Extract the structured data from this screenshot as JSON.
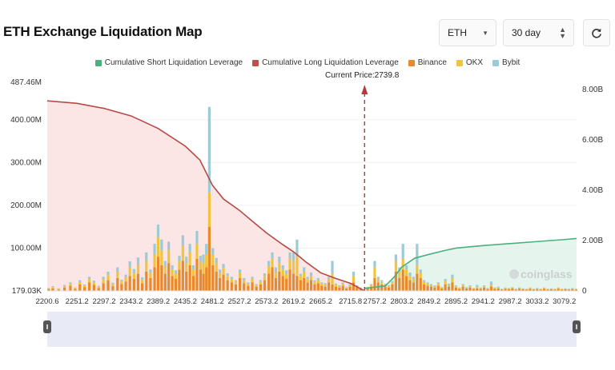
{
  "title": "ETH Exchange Liquidation Map",
  "controls": {
    "coin": "ETH",
    "period": "30 day"
  },
  "current_price_label": "Current Price:2739.8",
  "watermark": "coinglass",
  "chart_data": {
    "type": "bar",
    "current_price": 2739.8,
    "x_ticks": [
      "2200.6",
      "2251.2",
      "2297.2",
      "2343.2",
      "2389.2",
      "2435.2",
      "2481.2",
      "2527.2",
      "2573.2",
      "2619.2",
      "2665.2",
      "2715.8",
      "2757.2",
      "2803.2",
      "2849.2",
      "2895.2",
      "2941.2",
      "2987.2",
      "3033.2",
      "3079.2"
    ],
    "y_left_ticks": [
      "487.46M",
      "400.00M",
      "300.00M",
      "200.00M",
      "100.00M",
      "179.03K"
    ],
    "y_right_ticks": [
      "8.00B",
      "6.00B",
      "4.00B",
      "2.00B",
      "0"
    ],
    "ylim_left": [
      0,
      487.46
    ],
    "ylim_right": [
      0,
      8.0
    ],
    "legend": [
      {
        "name": "Cumulative Short Liquidation Leverage",
        "color": "#4caf7d"
      },
      {
        "name": "Cumulative Long Liquidation Leverage",
        "color": "#c0504d"
      },
      {
        "name": "Binance",
        "color": "#e8892c"
      },
      {
        "name": "OKX",
        "color": "#f2c43d"
      },
      {
        "name": "Bybit",
        "color": "#9ccad6"
      }
    ],
    "long_cumulative": {
      "x": [
        2200.6,
        2251.2,
        2297.2,
        2343.2,
        2389.2,
        2435.2,
        2460,
        2481.2,
        2500,
        2527.2,
        2550,
        2573.2,
        2600,
        2619.2,
        2640,
        2665.2,
        2690,
        2715.8,
        2739.8
      ],
      "y": [
        7.55,
        7.45,
        7.25,
        6.95,
        6.45,
        5.75,
        5.2,
        4.2,
        3.65,
        3.2,
        2.75,
        2.3,
        1.85,
        1.55,
        1.15,
        0.72,
        0.5,
        0.3,
        0.0
      ]
    },
    "short_cumulative": {
      "x": [
        2739.8,
        2757.2,
        2775,
        2790,
        2803.2,
        2825,
        2849.2,
        2875,
        2895.2,
        2941.2,
        2987.2,
        3033.2,
        3079.2,
        3100
      ],
      "y": [
        0.1,
        0.15,
        0.2,
        0.55,
        0.95,
        1.3,
        1.45,
        1.6,
        1.7,
        1.8,
        1.88,
        1.96,
        2.04,
        2.08
      ]
    },
    "bars": [
      {
        "x": 2203,
        "b": 4,
        "o": 2,
        "y": 1
      },
      {
        "x": 2210,
        "b": 6,
        "o": 3,
        "y": 2
      },
      {
        "x": 2220,
        "b": 3,
        "o": 2,
        "y": 1
      },
      {
        "x": 2230,
        "b": 8,
        "o": 4,
        "y": 2
      },
      {
        "x": 2240,
        "b": 12,
        "o": 5,
        "y": 3
      },
      {
        "x": 2248,
        "b": 5,
        "o": 2,
        "y": 1
      },
      {
        "x": 2256,
        "b": 15,
        "o": 6,
        "y": 4
      },
      {
        "x": 2264,
        "b": 9,
        "o": 4,
        "y": 2
      },
      {
        "x": 2272,
        "b": 20,
        "o": 8,
        "y": 5
      },
      {
        "x": 2280,
        "b": 14,
        "o": 6,
        "y": 4
      },
      {
        "x": 2288,
        "b": 7,
        "o": 3,
        "y": 2
      },
      {
        "x": 2296,
        "b": 18,
        "o": 9,
        "y": 6
      },
      {
        "x": 2304,
        "b": 25,
        "o": 12,
        "y": 8
      },
      {
        "x": 2312,
        "b": 11,
        "o": 5,
        "y": 3
      },
      {
        "x": 2320,
        "b": 30,
        "o": 15,
        "y": 10
      },
      {
        "x": 2327,
        "b": 16,
        "o": 6,
        "y": 4
      },
      {
        "x": 2334,
        "b": 22,
        "o": 10,
        "y": 6
      },
      {
        "x": 2341,
        "b": 35,
        "o": 20,
        "y": 14
      },
      {
        "x": 2348,
        "b": 28,
        "o": 14,
        "y": 9
      },
      {
        "x": 2355,
        "b": 40,
        "o": 22,
        "y": 16
      },
      {
        "x": 2362,
        "b": 18,
        "o": 8,
        "y": 6
      },
      {
        "x": 2369,
        "b": 45,
        "o": 25,
        "y": 20
      },
      {
        "x": 2376,
        "b": 30,
        "o": 12,
        "y": 8
      },
      {
        "x": 2383,
        "b": 55,
        "o": 30,
        "y": 25
      },
      {
        "x": 2389,
        "b": 80,
        "o": 45,
        "y": 30
      },
      {
        "x": 2395,
        "b": 60,
        "o": 35,
        "y": 25
      },
      {
        "x": 2401,
        "b": 40,
        "o": 18,
        "y": 12
      },
      {
        "x": 2407,
        "b": 65,
        "o": 30,
        "y": 20
      },
      {
        "x": 2413,
        "b": 35,
        "o": 15,
        "y": 10
      },
      {
        "x": 2419,
        "b": 28,
        "o": 12,
        "y": 8
      },
      {
        "x": 2425,
        "b": 50,
        "o": 20,
        "y": 12
      },
      {
        "x": 2431,
        "b": 70,
        "o": 35,
        "y": 25
      },
      {
        "x": 2437,
        "b": 45,
        "o": 20,
        "y": 15
      },
      {
        "x": 2443,
        "b": 60,
        "o": 30,
        "y": 20
      },
      {
        "x": 2449,
        "b": 35,
        "o": 15,
        "y": 10
      },
      {
        "x": 2455,
        "b": 75,
        "o": 35,
        "y": 30
      },
      {
        "x": 2461,
        "b": 50,
        "o": 20,
        "y": 12
      },
      {
        "x": 2466,
        "b": 40,
        "o": 25,
        "y": 20
      },
      {
        "x": 2471,
        "b": 55,
        "o": 30,
        "y": 25
      },
      {
        "x": 2476,
        "b": 150,
        "o": 80,
        "y": 200
      },
      {
        "x": 2482,
        "b": 60,
        "o": 25,
        "y": 15
      },
      {
        "x": 2488,
        "b": 45,
        "o": 20,
        "y": 12
      },
      {
        "x": 2494,
        "b": 30,
        "o": 12,
        "y": 8
      },
      {
        "x": 2500,
        "b": 38,
        "o": 15,
        "y": 10
      },
      {
        "x": 2507,
        "b": 25,
        "o": 10,
        "y": 6
      },
      {
        "x": 2514,
        "b": 20,
        "o": 8,
        "y": 5
      },
      {
        "x": 2521,
        "b": 15,
        "o": 6,
        "y": 4
      },
      {
        "x": 2528,
        "b": 30,
        "o": 12,
        "y": 8
      },
      {
        "x": 2535,
        "b": 18,
        "o": 7,
        "y": 5
      },
      {
        "x": 2542,
        "b": 12,
        "o": 5,
        "y": 3
      },
      {
        "x": 2549,
        "b": 20,
        "o": 8,
        "y": 5
      },
      {
        "x": 2556,
        "b": 10,
        "o": 4,
        "y": 2
      },
      {
        "x": 2563,
        "b": 15,
        "o": 6,
        "y": 4
      },
      {
        "x": 2570,
        "b": 25,
        "o": 10,
        "y": 6
      },
      {
        "x": 2577,
        "b": 40,
        "o": 18,
        "y": 12
      },
      {
        "x": 2583,
        "b": 55,
        "o": 20,
        "y": 15
      },
      {
        "x": 2589,
        "b": 30,
        "o": 15,
        "y": 10
      },
      {
        "x": 2595,
        "b": 45,
        "o": 20,
        "y": 15
      },
      {
        "x": 2601,
        "b": 35,
        "o": 15,
        "y": 10
      },
      {
        "x": 2607,
        "b": 28,
        "o": 12,
        "y": 8
      },
      {
        "x": 2613,
        "b": 50,
        "o": 25,
        "y": 15
      },
      {
        "x": 2619,
        "b": 40,
        "o": 30,
        "y": 20
      },
      {
        "x": 2625,
        "b": 35,
        "o": 45,
        "y": 40
      },
      {
        "x": 2631,
        "b": 25,
        "o": 10,
        "y": 5
      },
      {
        "x": 2637,
        "b": 30,
        "o": 15,
        "y": 10
      },
      {
        "x": 2643,
        "b": 20,
        "o": 8,
        "y": 5
      },
      {
        "x": 2649,
        "b": 25,
        "o": 10,
        "y": 8
      },
      {
        "x": 2655,
        "b": 15,
        "o": 6,
        "y": 4
      },
      {
        "x": 2661,
        "b": 18,
        "o": 7,
        "y": 5
      },
      {
        "x": 2667,
        "b": 12,
        "o": 5,
        "y": 3
      },
      {
        "x": 2673,
        "b": 10,
        "o": 5,
        "y": 3
      },
      {
        "x": 2679,
        "b": 20,
        "o": 8,
        "y": 5
      },
      {
        "x": 2685,
        "b": 15,
        "o": 25,
        "y": 30
      },
      {
        "x": 2691,
        "b": 10,
        "o": 4,
        "y": 3
      },
      {
        "x": 2697,
        "b": 8,
        "o": 3,
        "y": 2
      },
      {
        "x": 2703,
        "b": 12,
        "o": 5,
        "y": 3
      },
      {
        "x": 2709,
        "b": 6,
        "o": 2,
        "y": 1
      },
      {
        "x": 2715,
        "b": 10,
        "o": 4,
        "y": 2
      },
      {
        "x": 2721,
        "b": 20,
        "o": 15,
        "y": 10
      },
      {
        "x": 2727,
        "b": 8,
        "o": 3,
        "y": 2
      },
      {
        "x": 2733,
        "b": 5,
        "o": 2,
        "y": 1
      },
      {
        "x": 2745,
        "b": 6,
        "o": 2,
        "y": 1
      },
      {
        "x": 2751,
        "b": 10,
        "o": 4,
        "y": 2
      },
      {
        "x": 2757,
        "b": 30,
        "o": 25,
        "y": 15
      },
      {
        "x": 2763,
        "b": 20,
        "o": 8,
        "y": 5
      },
      {
        "x": 2769,
        "b": 15,
        "o": 6,
        "y": 4
      },
      {
        "x": 2775,
        "b": 10,
        "o": 4,
        "y": 3
      },
      {
        "x": 2781,
        "b": 8,
        "o": 3,
        "y": 2
      },
      {
        "x": 2787,
        "b": 15,
        "o": 5,
        "y": 3
      },
      {
        "x": 2793,
        "b": 45,
        "o": 25,
        "y": 15
      },
      {
        "x": 2799,
        "b": 30,
        "o": 15,
        "y": 10
      },
      {
        "x": 2805,
        "b": 50,
        "o": 25,
        "y": 35
      },
      {
        "x": 2811,
        "b": 35,
        "o": 15,
        "y": 10
      },
      {
        "x": 2817,
        "b": 25,
        "o": 10,
        "y": 8
      },
      {
        "x": 2823,
        "b": 20,
        "o": 8,
        "y": 5
      },
      {
        "x": 2829,
        "b": 40,
        "o": 20,
        "y": 50
      },
      {
        "x": 2835,
        "b": 30,
        "o": 12,
        "y": 8
      },
      {
        "x": 2841,
        "b": 15,
        "o": 6,
        "y": 4
      },
      {
        "x": 2847,
        "b": 12,
        "o": 5,
        "y": 3
      },
      {
        "x": 2853,
        "b": 10,
        "o": 4,
        "y": 2
      },
      {
        "x": 2859,
        "b": 8,
        "o": 3,
        "y": 2
      },
      {
        "x": 2865,
        "b": 12,
        "o": 5,
        "y": 3
      },
      {
        "x": 2871,
        "b": 6,
        "o": 2,
        "y": 1
      },
      {
        "x": 2877,
        "b": 15,
        "o": 8,
        "y": 5
      },
      {
        "x": 2883,
        "b": 10,
        "o": 4,
        "y": 3
      },
      {
        "x": 2889,
        "b": 20,
        "o": 10,
        "y": 8
      },
      {
        "x": 2895,
        "b": 8,
        "o": 3,
        "y": 2
      },
      {
        "x": 2901,
        "b": 5,
        "o": 2,
        "y": 1
      },
      {
        "x": 2907,
        "b": 10,
        "o": 4,
        "y": 2
      },
      {
        "x": 2913,
        "b": 6,
        "o": 2,
        "y": 1
      },
      {
        "x": 2919,
        "b": 8,
        "o": 3,
        "y": 2
      },
      {
        "x": 2925,
        "b": 4,
        "o": 2,
        "y": 1
      },
      {
        "x": 2931,
        "b": 6,
        "o": 3,
        "y": 5
      },
      {
        "x": 2937,
        "b": 5,
        "o": 2,
        "y": 1
      },
      {
        "x": 2943,
        "b": 8,
        "o": 3,
        "y": 2
      },
      {
        "x": 2949,
        "b": 4,
        "o": 2,
        "y": 1
      },
      {
        "x": 2955,
        "b": 10,
        "o": 4,
        "y": 8
      },
      {
        "x": 2961,
        "b": 5,
        "o": 2,
        "y": 1
      },
      {
        "x": 2967,
        "b": 6,
        "o": 2,
        "y": 2
      },
      {
        "x": 2973,
        "b": 3,
        "o": 1,
        "y": 1
      },
      {
        "x": 2979,
        "b": 5,
        "o": 2,
        "y": 1
      },
      {
        "x": 2985,
        "b": 4,
        "o": 2,
        "y": 1
      },
      {
        "x": 2991,
        "b": 6,
        "o": 2,
        "y": 1
      },
      {
        "x": 2997,
        "b": 3,
        "o": 1,
        "y": 1
      },
      {
        "x": 3003,
        "b": 5,
        "o": 2,
        "y": 1
      },
      {
        "x": 3009,
        "b": 4,
        "o": 1,
        "y": 1
      },
      {
        "x": 3015,
        "b": 3,
        "o": 1,
        "y": 1
      },
      {
        "x": 3021,
        "b": 5,
        "o": 2,
        "y": 1
      },
      {
        "x": 3027,
        "b": 3,
        "o": 1,
        "y": 1
      },
      {
        "x": 3033,
        "b": 4,
        "o": 2,
        "y": 1
      },
      {
        "x": 3039,
        "b": 3,
        "o": 1,
        "y": 1
      },
      {
        "x": 3045,
        "b": 5,
        "o": 2,
        "y": 1
      },
      {
        "x": 3051,
        "b": 3,
        "o": 1,
        "y": 1
      },
      {
        "x": 3057,
        "b": 4,
        "o": 1,
        "y": 1
      },
      {
        "x": 3063,
        "b": 3,
        "o": 1,
        "y": 1
      },
      {
        "x": 3069,
        "b": 5,
        "o": 2,
        "y": 1
      },
      {
        "x": 3075,
        "b": 3,
        "o": 1,
        "y": 1
      },
      {
        "x": 3081,
        "b": 4,
        "o": 1,
        "y": 1
      },
      {
        "x": 3087,
        "b": 3,
        "o": 1,
        "y": 1
      },
      {
        "x": 3093,
        "b": 4,
        "o": 2,
        "y": 1
      },
      {
        "x": 3099,
        "b": 3,
        "o": 1,
        "y": 1
      }
    ]
  }
}
